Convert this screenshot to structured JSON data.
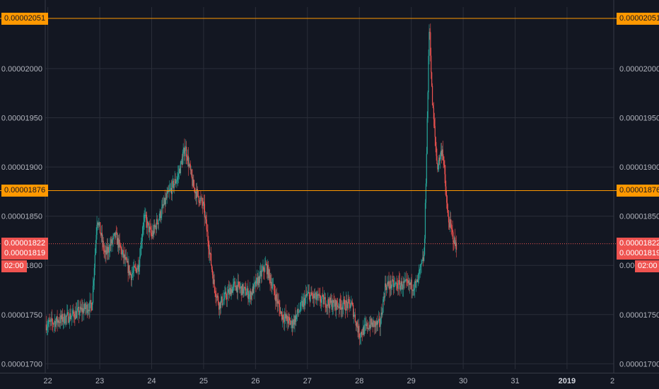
{
  "chart_data": {
    "type": "candlestick",
    "y_ticks": [
      "0.00001700",
      "0.00001750",
      "0.00001800",
      "0.00001850",
      "0.00001900",
      "0.00001950",
      "0.00002000"
    ],
    "y_tick_values": [
      1.7e-05,
      1.75e-05,
      1.8e-05,
      1.85e-05,
      1.9e-05,
      1.95e-05,
      2e-05
    ],
    "ylim": [
      1.6945e-05,
      2.0625e-05
    ],
    "x_ticks": [
      "22",
      "23",
      "24",
      "25",
      "26",
      "27",
      "28",
      "29",
      "30",
      "31",
      "2019",
      "2"
    ],
    "x_tick_bold": [
      false,
      false,
      false,
      false,
      false,
      false,
      false,
      false,
      false,
      false,
      true,
      false
    ],
    "x_range_days": [
      21.95,
      32.9
    ],
    "grid": true,
    "price_series": [
      [
        22.0,
        1.74e-05
      ],
      [
        22.5,
        1.75e-05
      ],
      [
        22.85,
        1.76e-05
      ],
      [
        22.95,
        1.85e-05
      ],
      [
        23.1,
        1.81e-05
      ],
      [
        23.3,
        1.83e-05
      ],
      [
        23.6,
        1.79e-05
      ],
      [
        23.75,
        1.8e-05
      ],
      [
        23.85,
        1.85e-05
      ],
      [
        24.0,
        1.83e-05
      ],
      [
        24.3,
        1.87e-05
      ],
      [
        24.5,
        1.89e-05
      ],
      [
        24.65,
        1.92e-05
      ],
      [
        24.8,
        1.88e-05
      ],
      [
        25.0,
        1.86e-05
      ],
      [
        25.1,
        1.82e-05
      ],
      [
        25.2,
        1.78e-05
      ],
      [
        25.3,
        1.76e-05
      ],
      [
        25.6,
        1.78e-05
      ],
      [
        25.9,
        1.77e-05
      ],
      [
        26.2,
        1.8e-05
      ],
      [
        26.5,
        1.75e-05
      ],
      [
        26.7,
        1.74e-05
      ],
      [
        27.0,
        1.77e-05
      ],
      [
        27.5,
        1.76e-05
      ],
      [
        27.85,
        1.76e-05
      ],
      [
        28.0,
        1.73e-05
      ],
      [
        28.2,
        1.74e-05
      ],
      [
        28.4,
        1.74e-05
      ],
      [
        28.5,
        1.78e-05
      ],
      [
        28.8,
        1.78e-05
      ],
      [
        29.1,
        1.78e-05
      ],
      [
        29.25,
        1.81e-05
      ],
      [
        29.35,
        2.05e-05
      ],
      [
        29.4,
        1.97e-05
      ],
      [
        29.5,
        1.9e-05
      ],
      [
        29.6,
        1.92e-05
      ],
      [
        29.7,
        1.85e-05
      ],
      [
        29.85,
        1.82e-05
      ]
    ],
    "horizontal_lines": [
      {
        "value": 2.051e-05,
        "label": "0.00002051",
        "color": "#ff9800"
      },
      {
        "value": 1.876e-05,
        "label": "0.00001876",
        "color": "#ff9800"
      },
      {
        "value": 1.822e-05,
        "label": "0.00001822",
        "color": "#ef5350",
        "dotted": true
      }
    ],
    "last_price_label": "0.00001819",
    "last_price_value": 1.819e-05,
    "countdown_label": "02:00",
    "up_color": "#26a69a",
    "down_color": "#ef5350"
  }
}
